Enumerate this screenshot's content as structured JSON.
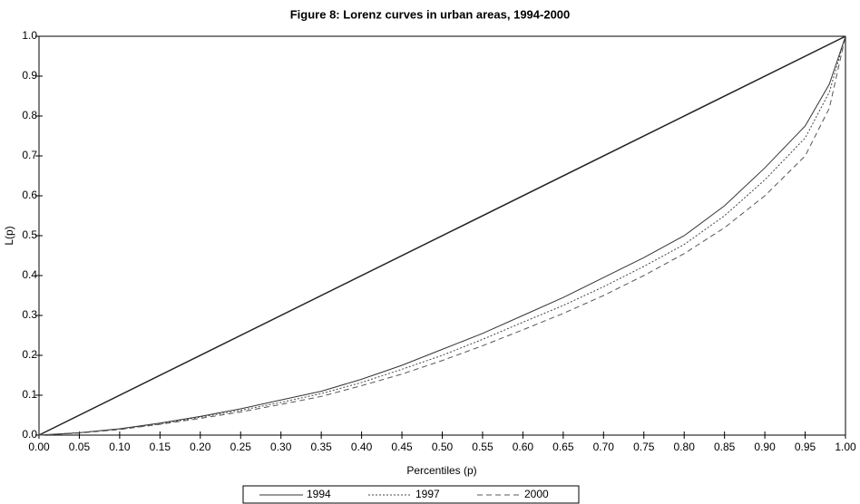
{
  "chart_data": {
    "type": "line",
    "title": "Figure 8: Lorenz curves in urban areas, 1994-2000",
    "x_label": "Percentiles (p)",
    "y_label": "L(p)",
    "x": [
      0,
      0.05,
      0.1,
      0.15,
      0.2,
      0.25,
      0.3,
      0.35,
      0.4,
      0.45,
      0.5,
      0.55,
      0.6,
      0.65,
      0.7,
      0.75,
      0.8,
      0.85,
      0.9,
      0.95,
      0.98,
      1
    ],
    "series": [
      {
        "name": "1994",
        "color": "#333333",
        "dash": "solid",
        "values": [
          0,
          0.006,
          0.016,
          0.03,
          0.047,
          0.066,
          0.088,
          0.11,
          0.14,
          0.175,
          0.215,
          0.255,
          0.3,
          0.345,
          0.395,
          0.445,
          0.5,
          0.575,
          0.67,
          0.775,
          0.88,
          1
        ]
      },
      {
        "name": "1997",
        "color": "#444444",
        "dash": "dotted",
        "values": [
          0,
          0.006,
          0.015,
          0.028,
          0.045,
          0.062,
          0.082,
          0.104,
          0.132,
          0.165,
          0.2,
          0.24,
          0.283,
          0.325,
          0.372,
          0.423,
          0.478,
          0.55,
          0.64,
          0.745,
          0.86,
          1
        ]
      },
      {
        "name": "2000",
        "color": "#555555",
        "dash": "dashed",
        "values": [
          0,
          0.005,
          0.014,
          0.027,
          0.042,
          0.058,
          0.077,
          0.097,
          0.124,
          0.153,
          0.187,
          0.224,
          0.264,
          0.305,
          0.35,
          0.4,
          0.455,
          0.52,
          0.6,
          0.7,
          0.82,
          1
        ]
      }
    ],
    "equality_line": true,
    "xlim": [
      0,
      1
    ],
    "ylim": [
      0,
      1
    ],
    "xticks": [
      {
        "value": 0,
        "label": "0.00"
      },
      0.05,
      {
        "value": 0.1,
        "label": "0.10"
      },
      0.15,
      {
        "value": 0.2,
        "label": "0.20"
      },
      0.25,
      {
        "value": 0.3,
        "label": "0.30"
      },
      0.35,
      {
        "value": 0.4,
        "label": "0.40"
      },
      0.45,
      {
        "value": 0.5,
        "label": "0.50"
      },
      0.55,
      {
        "value": 0.6,
        "label": "0.60"
      },
      0.65,
      {
        "value": 0.7,
        "label": "0.70"
      },
      0.75,
      {
        "value": 0.8,
        "label": "0.80"
      },
      0.85,
      {
        "value": 0.9,
        "label": "0.90"
      },
      0.95,
      {
        "value": 1,
        "label": "1.00"
      }
    ],
    "yticks": [
      {
        "value": 0,
        "label": "0.0"
      },
      0.1,
      0.2,
      0.3,
      0.4,
      0.5,
      0.6,
      0.7,
      0.8,
      0.9,
      {
        "value": 1,
        "label": "1.0"
      }
    ],
    "grid": false,
    "legend": "bottom"
  }
}
